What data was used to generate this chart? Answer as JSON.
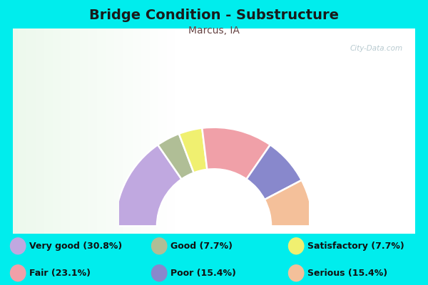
{
  "title": "Bridge Condition - Substructure",
  "subtitle": "Marcus, IA",
  "segments_left_to_right": [
    {
      "label": "Very good",
      "value": 30.8,
      "color": "#c0a8e0"
    },
    {
      "label": "Good",
      "value": 7.7,
      "color": "#b0be96"
    },
    {
      "label": "Satisfactory",
      "value": 7.7,
      "color": "#f0f070"
    },
    {
      "label": "Fair",
      "value": 23.1,
      "color": "#f0a0a8"
    },
    {
      "label": "Poor",
      "value": 15.4,
      "color": "#8888cc"
    },
    {
      "label": "Serious",
      "value": 15.4,
      "color": "#f4c09a"
    }
  ],
  "legend_items": [
    {
      "label": "Very good (30.8%)",
      "color": "#c0a8e0"
    },
    {
      "label": "Good (7.7%)",
      "color": "#b0be96"
    },
    {
      "label": "Satisfactory (7.7%)",
      "color": "#f0f070"
    },
    {
      "label": "Fair (23.1%)",
      "color": "#f0a0a8"
    },
    {
      "label": "Poor (15.4%)",
      "color": "#8888cc"
    },
    {
      "label": "Serious (15.4%)",
      "color": "#f4c09a"
    }
  ],
  "bg_color": "#00eded",
  "chart_bg_left": "#d8eed8",
  "chart_bg_right": "#f0f8f0",
  "title_color": "#1a1a1a",
  "subtitle_color": "#664444",
  "watermark": "City-Data.com",
  "fig_width": 6.0,
  "fig_height": 4.0
}
